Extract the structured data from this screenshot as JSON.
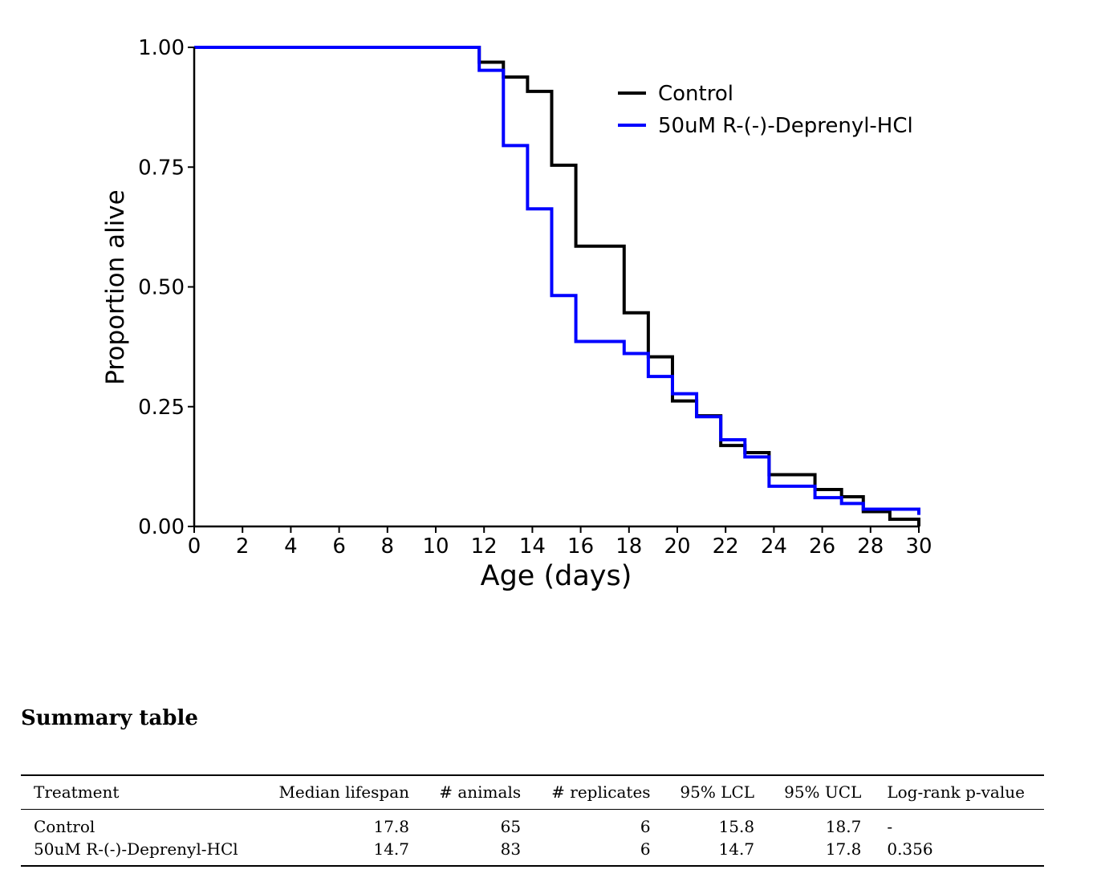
{
  "chart_data": {
    "type": "line",
    "step": true,
    "xlabel": "Age (days)",
    "ylabel": "Proportion alive",
    "xlim": [
      0,
      30
    ],
    "ylim": [
      0,
      1
    ],
    "xticks": [
      0,
      2,
      4,
      6,
      8,
      10,
      12,
      14,
      16,
      18,
      20,
      22,
      24,
      26,
      28,
      30
    ],
    "yticks": [
      0.0,
      0.25,
      0.5,
      0.75,
      1.0
    ],
    "ytick_labels": [
      "0.00",
      "0.25",
      "0.50",
      "0.75",
      "1.00"
    ],
    "grid": false,
    "legend_position": "top-right",
    "series": [
      {
        "name": "Control",
        "color": "#000000",
        "x": [
          0,
          11.8,
          12.8,
          13.8,
          14.8,
          15.8,
          17.8,
          18.8,
          19.8,
          20.8,
          21.8,
          22.8,
          23.8,
          25.7,
          26.8,
          27.7,
          28.8,
          30.0
        ],
        "y": [
          1.0,
          0.969,
          0.938,
          0.908,
          0.754,
          0.585,
          0.446,
          0.354,
          0.262,
          0.231,
          0.169,
          0.154,
          0.108,
          0.077,
          0.062,
          0.031,
          0.015,
          0.0
        ]
      },
      {
        "name": "50uM R-(-)-Deprenyl-HCl",
        "color": "#0000ff",
        "x": [
          0,
          11.8,
          12.8,
          13.8,
          14.8,
          15.8,
          17.8,
          18.8,
          19.8,
          20.8,
          21.8,
          22.8,
          23.8,
          25.7,
          26.8,
          27.7,
          30.0
        ],
        "y": [
          1.0,
          0.952,
          0.795,
          0.663,
          0.482,
          0.386,
          0.361,
          0.313,
          0.277,
          0.229,
          0.181,
          0.145,
          0.084,
          0.06,
          0.048,
          0.036,
          0.024
        ]
      }
    ]
  },
  "summary": {
    "title": "Summary table",
    "columns": [
      "Treatment",
      "Median lifespan",
      "# animals",
      "# replicates",
      "95% LCL",
      "95% UCL",
      "Log-rank p-value"
    ],
    "rows": [
      [
        "Control",
        "17.8",
        "65",
        "6",
        "15.8",
        "18.7",
        "-"
      ],
      [
        "50uM R-(-)-Deprenyl-HCl",
        "14.7",
        "83",
        "6",
        "14.7",
        "17.8",
        "0.356"
      ]
    ]
  }
}
